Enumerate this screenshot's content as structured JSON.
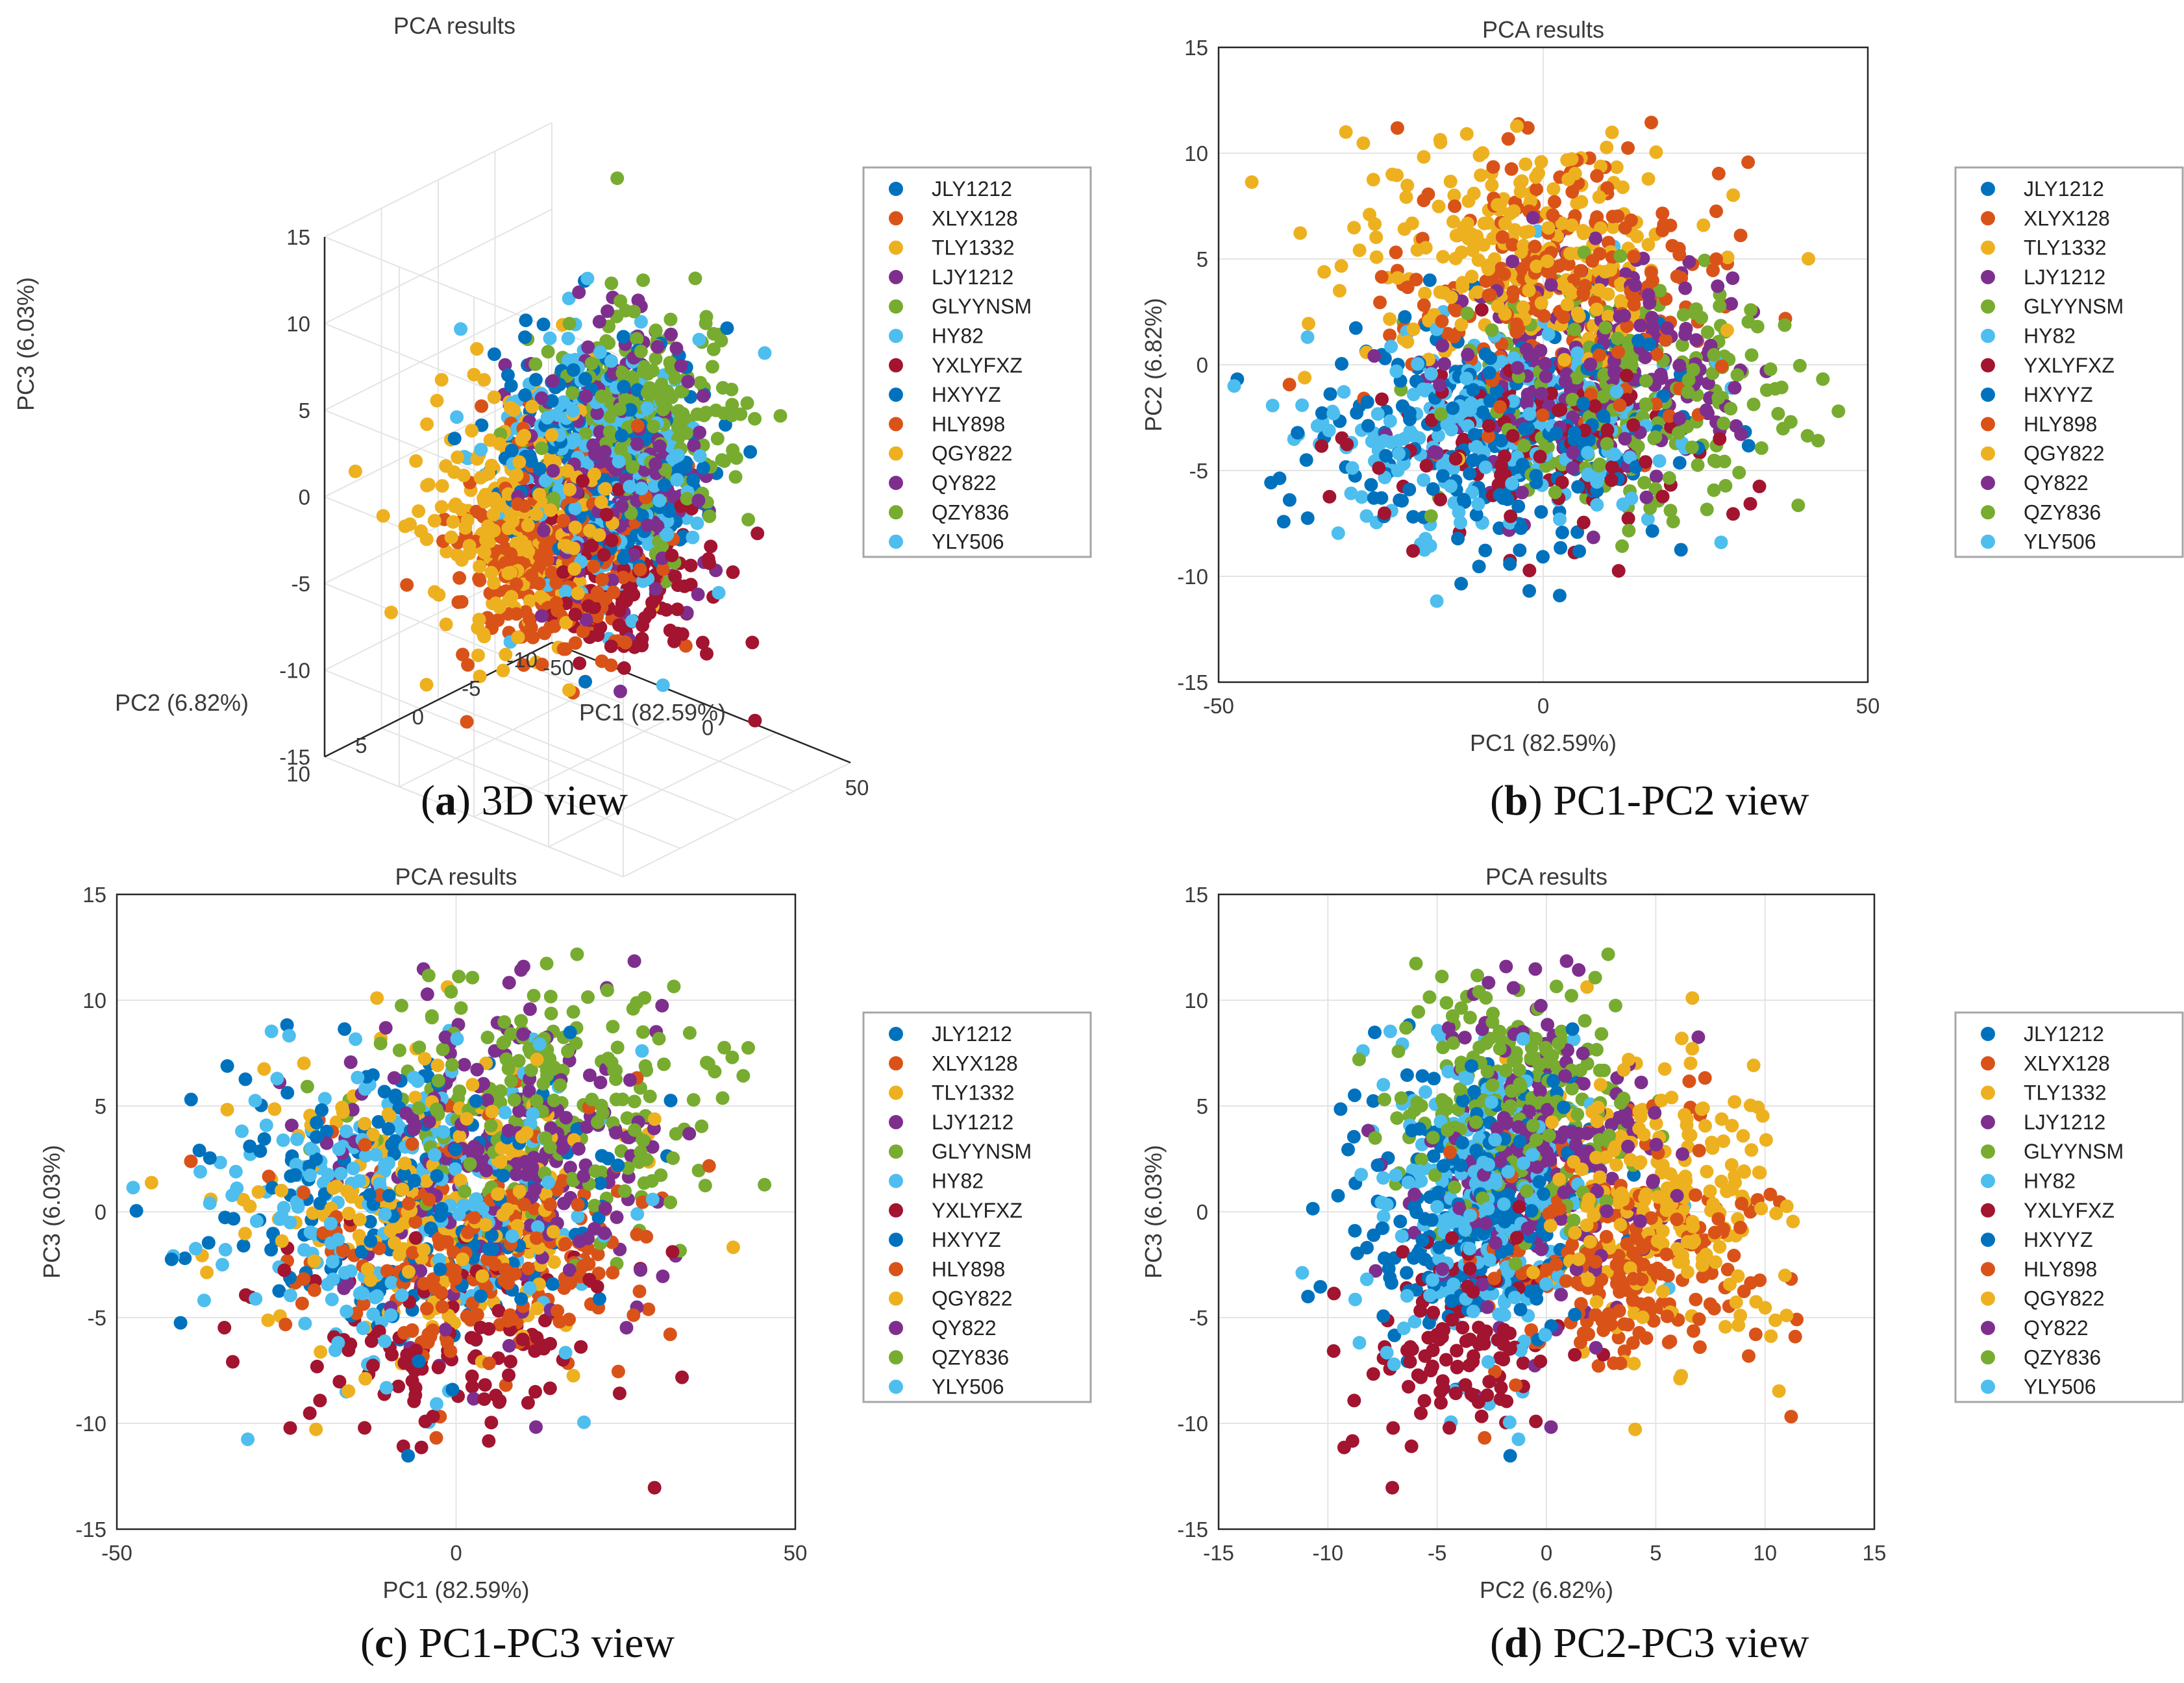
{
  "chart_data": [
    {
      "id": "a",
      "type": "scatter",
      "view": "3d",
      "title": "PCA results",
      "xlabel": "PC1 (82.59%)",
      "ylabel": "PC2 (6.82%)",
      "zlabel": "PC3 (6.03%)",
      "xlim": [
        -50,
        50
      ],
      "ylim": [
        -10,
        10
      ],
      "zlim": [
        -15,
        15
      ],
      "xticks": [
        "-50",
        "0",
        "50"
      ],
      "yticks": [
        "-10",
        "-5",
        "0",
        "5",
        "10"
      ],
      "zticks": [
        "-15",
        "-10",
        "-5",
        "0",
        "5",
        "10",
        "15"
      ],
      "grid": true,
      "caption_letter": "a",
      "caption_text": " 3D view"
    },
    {
      "id": "b",
      "type": "scatter",
      "title": "PCA results",
      "xlabel": "PC1 (82.59%)",
      "ylabel": "PC2 (6.82%)",
      "xlim": [
        -50,
        50
      ],
      "ylim": [
        -15,
        15
      ],
      "xticks": [
        "-50",
        "0",
        "50"
      ],
      "yticks": [
        "-15",
        "-10",
        "-5",
        "0",
        "5",
        "10",
        "15"
      ],
      "grid": true,
      "caption_letter": "b",
      "caption_text": " PC1-PC2 view"
    },
    {
      "id": "c",
      "type": "scatter",
      "title": "PCA results",
      "xlabel": "PC1 (82.59%)",
      "ylabel": "PC3 (6.03%)",
      "xlim": [
        -50,
        50
      ],
      "ylim": [
        -15,
        15
      ],
      "xticks": [
        "-50",
        "0",
        "50"
      ],
      "yticks": [
        "-15",
        "-10",
        "-5",
        "0",
        "5",
        "10",
        "15"
      ],
      "grid": true,
      "caption_letter": "c",
      "caption_text": " PC1-PC3 view"
    },
    {
      "id": "d",
      "type": "scatter",
      "title": "PCA results",
      "xlabel": "PC2 (6.82%)",
      "ylabel": "PC3 (6.03%)",
      "xlim": [
        -15,
        15
      ],
      "ylim": [
        -15,
        15
      ],
      "xticks": [
        "-15",
        "-10",
        "-5",
        "0",
        "5",
        "10",
        "15"
      ],
      "yticks": [
        "-15",
        "-10",
        "-5",
        "0",
        "5",
        "10",
        "15"
      ],
      "grid": true,
      "caption_letter": "d",
      "caption_text": " PC2-PC3 view"
    }
  ],
  "series": [
    {
      "name": "JLY1212",
      "color": "#0072BD",
      "pc1": -8,
      "pc2": -3,
      "pc3": 1,
      "s1": 15,
      "s2": 2.8,
      "s3": 3.6
    },
    {
      "name": "XLYX128",
      "color": "#D95319",
      "pc1": 5,
      "pc2": 4,
      "pc3": -2,
      "s1": 13,
      "s2": 3.2,
      "s3": 3.0
    },
    {
      "name": "TLY1332",
      "color": "#EDB120",
      "pc1": -5,
      "pc2": 6,
      "pc3": 0,
      "s1": 14,
      "s2": 2.6,
      "s3": 3.2
    },
    {
      "name": "LJY1212",
      "color": "#7E2F8E",
      "pc1": 8,
      "pc2": 0,
      "pc3": 3,
      "s1": 13,
      "s2": 2.8,
      "s3": 3.6
    },
    {
      "name": "GLYYNSM",
      "color": "#77AC30",
      "pc1": 15,
      "pc2": -1,
      "pc3": 4,
      "s1": 12,
      "s2": 2.6,
      "s3": 3.2
    },
    {
      "name": "HY82",
      "color": "#4DBEEE",
      "pc1": -10,
      "pc2": -3,
      "pc3": 0,
      "s1": 14,
      "s2": 2.6,
      "s3": 3.8
    },
    {
      "name": "YXLYFXZ",
      "color": "#A2142F",
      "pc1": -2,
      "pc2": -4,
      "pc3": -6,
      "s1": 13,
      "s2": 2.4,
      "s3": 2.4
    },
    {
      "name": "HXYYZ",
      "color": "#0072BD",
      "pc1": -5,
      "pc2": -4,
      "pc3": 0,
      "s1": 14,
      "s2": 2.6,
      "s3": 3.4
    },
    {
      "name": "HLY898",
      "color": "#D95319",
      "pc1": 3,
      "pc2": 3,
      "pc3": -3,
      "s1": 12,
      "s2": 3.0,
      "s3": 2.8
    },
    {
      "name": "QGY822",
      "color": "#EDB120",
      "pc1": -3,
      "pc2": 5,
      "pc3": 1,
      "s1": 13,
      "s2": 2.8,
      "s3": 3.4
    },
    {
      "name": "QY822",
      "color": "#7E2F8E",
      "pc1": 5,
      "pc2": 0,
      "pc3": 2,
      "s1": 13,
      "s2": 2.8,
      "s3": 3.6
    },
    {
      "name": "QZY836",
      "color": "#77AC30",
      "pc1": 10,
      "pc2": -2,
      "pc3": 5,
      "s1": 13,
      "s2": 2.6,
      "s3": 3.4
    },
    {
      "name": "YLY506",
      "color": "#4DBEEE",
      "pc1": -6,
      "pc2": -3,
      "pc3": 0,
      "s1": 14,
      "s2": 2.6,
      "s3": 3.6
    }
  ]
}
